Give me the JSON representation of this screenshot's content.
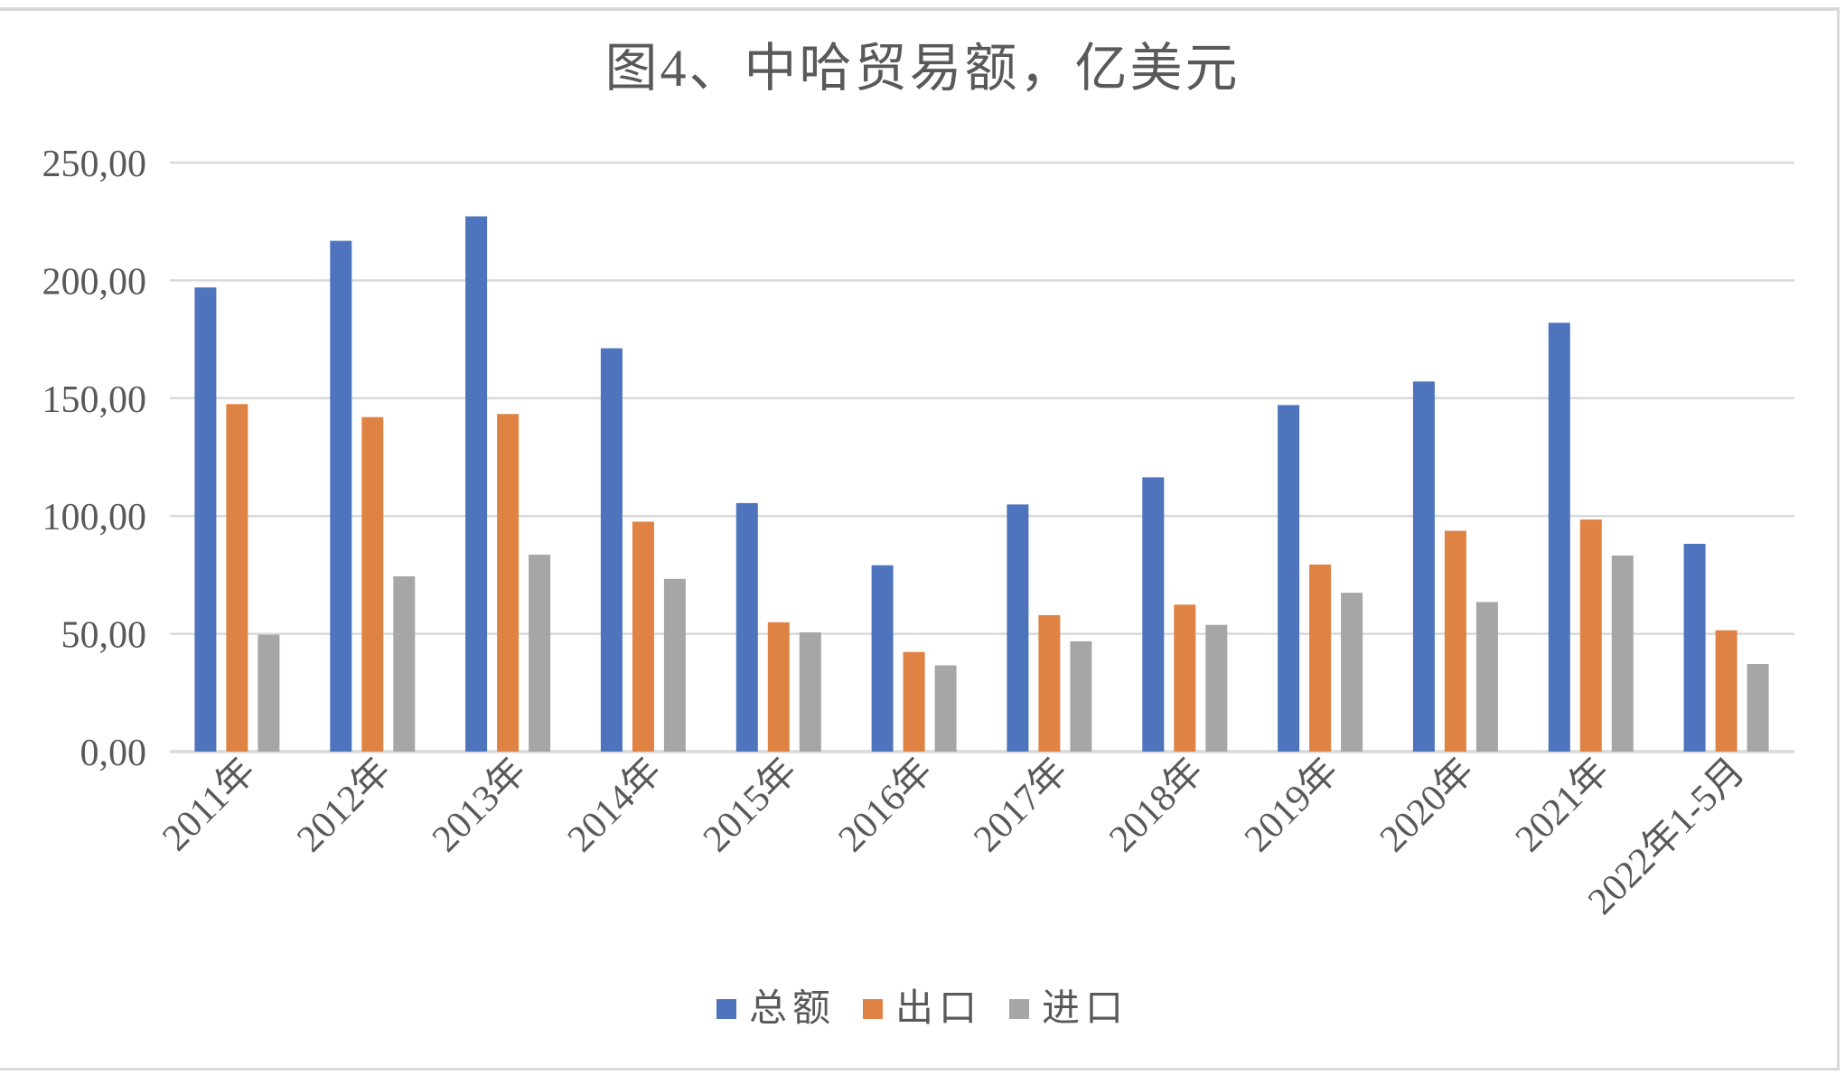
{
  "chart_data": {
    "type": "bar",
    "title": "图4、中哈贸易额，亿美元",
    "categories": [
      "2011年",
      "2012年",
      "2013年",
      "2014年",
      "2015年",
      "2016年",
      "2017年",
      "2018年",
      "2019年",
      "2020年",
      "2021年",
      "2022年1-5月"
    ],
    "series": [
      {
        "name": "总额",
        "color": "#4e74bd",
        "values": [
          197.0,
          216.8,
          227.2,
          171.2,
          105.5,
          79.1,
          104.9,
          116.4,
          147.1,
          157.1,
          182.0,
          88.2
        ]
      },
      {
        "name": "出口",
        "color": "#df8344",
        "values": [
          147.5,
          142.0,
          143.3,
          97.6,
          54.9,
          42.3,
          57.9,
          62.4,
          79.4,
          93.7,
          98.5,
          51.5
        ]
      },
      {
        "name": "进口",
        "color": "#a6a6a6",
        "values": [
          49.6,
          74.4,
          83.6,
          73.3,
          50.6,
          36.6,
          46.8,
          53.8,
          67.4,
          63.5,
          83.2,
          37.2
        ]
      }
    ],
    "xlabel": "",
    "ylabel": "",
    "ylim": [
      0,
      250
    ],
    "ytick_step": 50,
    "ytick_labels": [
      "0,00",
      "50,00",
      "100,00",
      "150,00",
      "200,00",
      "250,00"
    ],
    "grid": true,
    "legend_position": "bottom",
    "axis_text_color": "#595959",
    "gridline_color": "#d9d9d9",
    "frame_border_color": "#d9d9d9"
  }
}
